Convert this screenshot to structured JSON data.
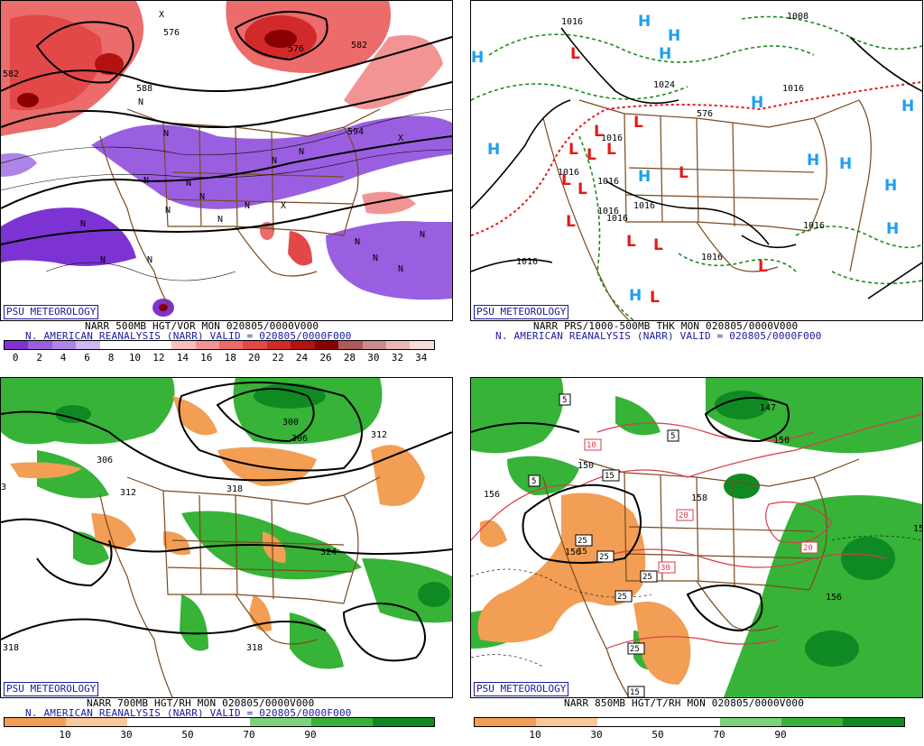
{
  "colors": {
    "vor": [
      "#7d33d4",
      "#9a5fe0",
      "#ad85e8",
      "#cdb8f2",
      "#ffffff",
      "#ffffff",
      "#ffffff",
      "#f7c0c0",
      "#f29494",
      "#ec6b6b",
      "#e34848",
      "#d22a2a",
      "#b31212",
      "#8a0000",
      "#ad5a5a",
      "#cc8c8c",
      "#eab7b7",
      "#f7dcdc"
    ],
    "rh": [
      "#f29e54",
      "#f7c89a",
      "#ffffff",
      "#ffffff",
      "#7ed27a",
      "#37b338",
      "#0f8a22"
    ],
    "geo": "#7a4a1e",
    "high": "#1ea0ee",
    "low": "#e31a1a",
    "green_dash": "#1e8c1e"
  },
  "panels": [
    {
      "logo": "PSU METEOROLOGY",
      "title1": "NARR 500MB HGT/VOR MON 020805/0000V000",
      "title2": "N. AMERICAN REANALYSIS (NARR) VALID = 020805/0000F000",
      "scale": [
        "0",
        "2",
        "4",
        "6",
        "8",
        "10",
        "12",
        "14",
        "16",
        "18",
        "20",
        "22",
        "24",
        "26",
        "28",
        "30",
        "32",
        "34"
      ],
      "contour_labels": [
        "582",
        "582",
        "594",
        "588",
        "576",
        "576"
      ],
      "n_marks": [
        "N",
        "N",
        "N",
        "N",
        "N",
        "N",
        "N",
        "N",
        "N",
        "N",
        "N",
        "N",
        "N",
        "N",
        "N",
        "N",
        "N"
      ],
      "x_marks": [
        "X",
        "X",
        "X"
      ]
    },
    {
      "logo": "PSU METEOROLOGY",
      "title1": "NARR PRS/1000-500MB THK MON 020805/0000V000",
      "title2": "N. AMERICAN REANALYSIS (NARR) VALID = 020805/0000F000",
      "contour_labels": [
        "1016",
        "1008",
        "1024",
        "1016",
        "1016",
        "1016",
        "1016",
        "1016",
        "1016",
        "1016",
        "1016",
        "1016",
        "1016",
        "576"
      ],
      "highs": [
        "H",
        "H",
        "H",
        "H",
        "H",
        "H",
        "H",
        "H",
        "H",
        "H",
        "H",
        "H",
        "H"
      ],
      "lows": [
        "L",
        "L",
        "L",
        "L",
        "L",
        "L",
        "L",
        "L",
        "L",
        "L",
        "L",
        "L",
        "L",
        "L"
      ]
    },
    {
      "logo": "PSU METEOROLOGY",
      "title1": "NARR 700MB HGT/RH MON 020805/0000V000",
      "title2": "N. AMERICAN REANALYSIS (NARR) VALID = 020805/0000F000",
      "scale": [
        "10",
        "30",
        "50",
        "70",
        "90"
      ],
      "contour_labels": [
        "300",
        "306",
        "312",
        "306",
        "312",
        "318",
        "324",
        "318",
        "318",
        "3"
      ]
    },
    {
      "logo": "PSU METEOROLOGY",
      "title1": "NARR 850MB HGT/T/RH MON 020805/0000V000",
      "scale": [
        "10",
        "30",
        "50",
        "70",
        "90"
      ],
      "contour_labels": [
        "147",
        "150",
        "156",
        "150",
        "156",
        "156",
        "158",
        "15"
      ],
      "temp_boxes": [
        "5",
        "5",
        "10",
        "15",
        "5",
        "20",
        "20",
        "25",
        "25",
        "15",
        "25",
        "30",
        "25",
        "25",
        "15"
      ]
    }
  ]
}
